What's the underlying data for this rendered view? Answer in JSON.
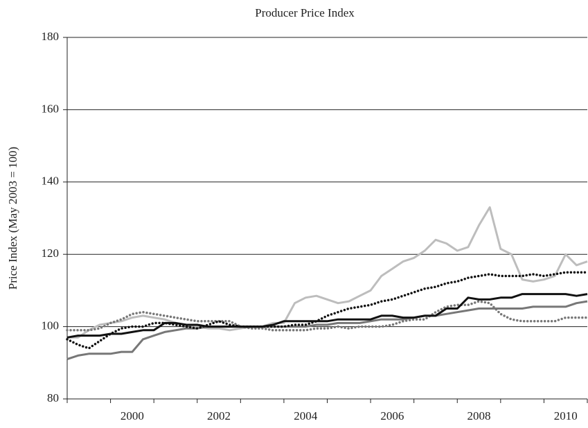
{
  "chart_data": {
    "type": "line",
    "title": "Producer Price Index",
    "y_label": "Price Index (May 2003 = 100)",
    "x": [
      1999,
      1999.25,
      1999.5,
      1999.75,
      2000,
      2000.25,
      2000.5,
      2000.75,
      2001,
      2001.25,
      2001.5,
      2001.75,
      2002,
      2002.25,
      2002.5,
      2002.75,
      2003,
      2003.25,
      2003.5,
      2003.75,
      2004,
      2004.25,
      2004.5,
      2004.75,
      2005,
      2005.25,
      2005.5,
      2005.75,
      2006,
      2006.25,
      2006.5,
      2006.75,
      2007,
      2007.25,
      2007.5,
      2007.75,
      2008,
      2008.25,
      2008.5,
      2008.75,
      2009,
      2009.25,
      2009.5,
      2009.75,
      2010,
      2010.25,
      2010.5,
      2010.75,
      2011
    ],
    "series": [
      {
        "color": "#bdbdbd",
        "style": "solid",
        "values": [
          97,
          97,
          99,
          100.5,
          101,
          101.5,
          102.5,
          103,
          102.5,
          102,
          101,
          100.5,
          100,
          99.5,
          99.5,
          99,
          99.5,
          100,
          100,
          101,
          101,
          106.5,
          108,
          108.5,
          107.5,
          106.5,
          107,
          108.5,
          110,
          114,
          116,
          118,
          119,
          121,
          124,
          123,
          121,
          122,
          128,
          133,
          121.5,
          120,
          113,
          112.5,
          113,
          114,
          120,
          117,
          118
        ]
      },
      {
        "color": "#777777",
        "style": "solid",
        "values": [
          91,
          92,
          92.5,
          92.5,
          92.5,
          93,
          93,
          96.5,
          97.5,
          98.5,
          99,
          99.5,
          99.5,
          100,
          100,
          100,
          100,
          100,
          100,
          100,
          100,
          100,
          100,
          100.5,
          100.5,
          101,
          101,
          101,
          101.5,
          102,
          102,
          102,
          102.5,
          103,
          103,
          103.5,
          104,
          104.5,
          105,
          105,
          105,
          105,
          105,
          105.5,
          105.5,
          105.5,
          105.5,
          106.5,
          107
        ]
      },
      {
        "color": "#777777",
        "style": "dotted",
        "values": [
          99,
          99,
          99,
          99.5,
          101,
          102,
          103.5,
          104,
          103.5,
          103,
          102.5,
          102,
          101.5,
          101.5,
          101.5,
          101.5,
          100,
          99.5,
          99.5,
          99,
          99,
          99,
          99,
          99.5,
          99.5,
          100,
          99.5,
          100,
          100,
          100,
          100.5,
          101.5,
          102,
          102,
          104,
          105.5,
          106,
          106,
          107,
          106.5,
          103.5,
          102,
          101.5,
          101.5,
          101.5,
          101.5,
          102.5,
          102.5,
          102.5
        ]
      },
      {
        "color": "#111111",
        "style": "dotted",
        "values": [
          96.5,
          95,
          94,
          96,
          98,
          99.5,
          100,
          100,
          101,
          101,
          100.5,
          100,
          99.5,
          100.5,
          101.5,
          100.5,
          100,
          100,
          100,
          100,
          100,
          100.5,
          100.5,
          101.5,
          103,
          104,
          105,
          105.5,
          106,
          107,
          107.5,
          108.5,
          109.5,
          110.5,
          111,
          112,
          112.5,
          113.5,
          114,
          114.5,
          114,
          114,
          114,
          114.5,
          114,
          114.5,
          115,
          115,
          115
        ]
      },
      {
        "color": "#111111",
        "style": "solid",
        "values": [
          97,
          97.5,
          97.5,
          97.5,
          98,
          98,
          98.5,
          99,
          99,
          101,
          101,
          100.5,
          100.5,
          100,
          100,
          100,
          100,
          100,
          100,
          100.5,
          101.5,
          101.5,
          101.5,
          101.5,
          101.5,
          102,
          102,
          102,
          102,
          103,
          103,
          102.5,
          102.5,
          103,
          103,
          105,
          105,
          108,
          107.5,
          107.5,
          108,
          108,
          109,
          109,
          109,
          109,
          109,
          108.5,
          109
        ]
      }
    ],
    "xlim": [
      1999,
      2011
    ],
    "xticks": [
      {
        "value": 2000.5,
        "label": "2000"
      },
      {
        "value": 2002.5,
        "label": "2002"
      },
      {
        "value": 2004.5,
        "label": "2004"
      },
      {
        "value": 2006.5,
        "label": "2006"
      },
      {
        "value": 2008.5,
        "label": "2008"
      },
      {
        "value": 2010.5,
        "label": "2010"
      }
    ],
    "x_tick_marks": [
      1999,
      2000,
      2001,
      2002,
      2003,
      2004,
      2005,
      2006,
      2007,
      2008,
      2009,
      2010,
      2011
    ],
    "ylim": [
      80,
      180
    ],
    "yticks": [
      80,
      100,
      120,
      140,
      160,
      180
    ],
    "grid": true
  }
}
